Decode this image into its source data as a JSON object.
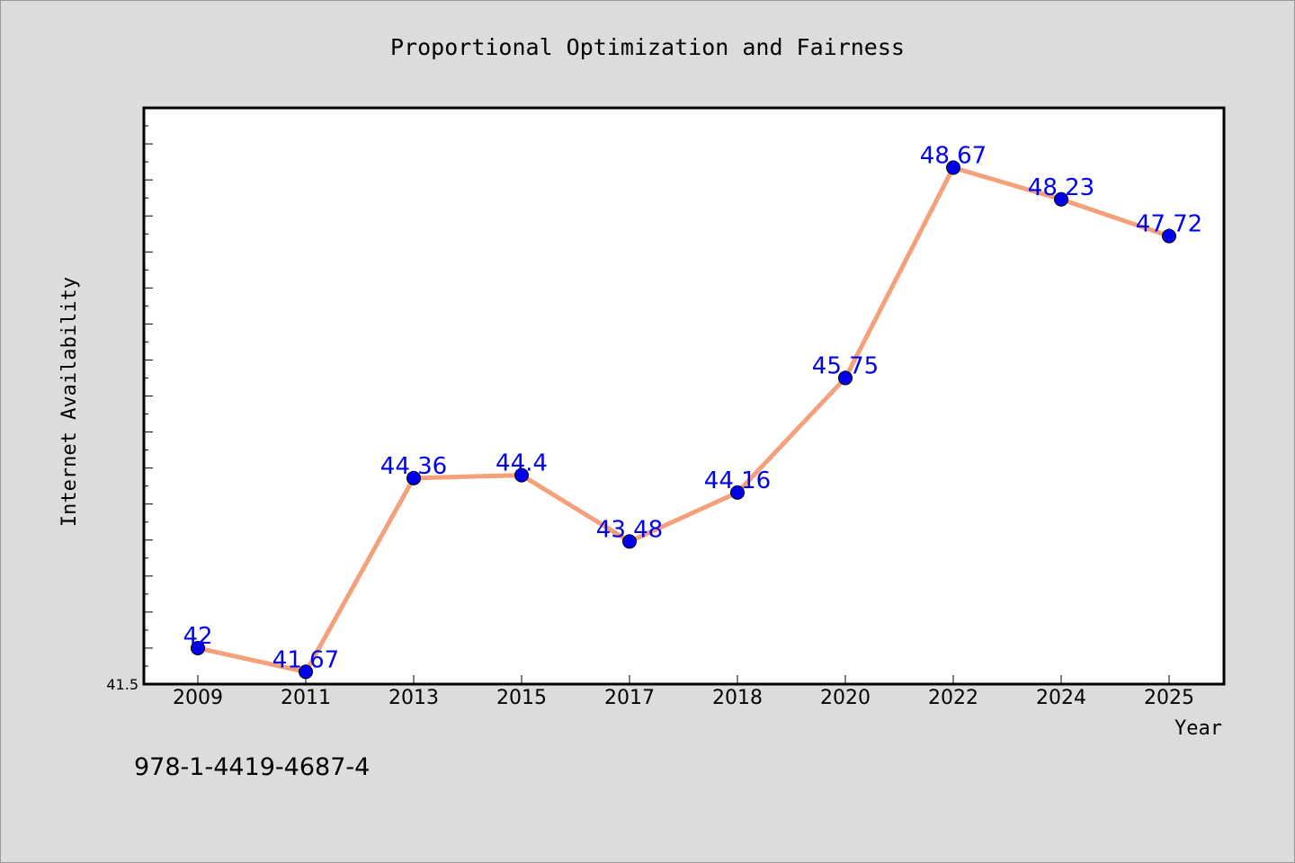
{
  "chart_data": {
    "type": "line",
    "title": "Proportional Optimization and Fairness",
    "xlabel": "Year",
    "ylabel": "Internet Availability",
    "categories": [
      "2009",
      "2011",
      "2013",
      "2015",
      "2017",
      "2018",
      "2020",
      "2022",
      "2024",
      "2025"
    ],
    "series": [
      {
        "values": [
          42,
          41.67,
          44.36,
          44.4,
          43.48,
          44.16,
          45.75,
          48.67,
          48.23,
          47.72
        ]
      }
    ],
    "data_labels": [
      "42",
      "41.67",
      "44.36",
      "44.4",
      "43.48",
      "44.16",
      "45.75",
      "48.67",
      "48.23",
      "47.72"
    ],
    "ytick_labels": [
      "41.5"
    ],
    "ylim": [
      41.5,
      49.5
    ],
    "grid": false,
    "line_color": "#f4a07a",
    "marker_color": "#0000ee",
    "label_color": "#0000ee",
    "background_color": "#dcdcdc",
    "plot_background": "#ffffff"
  },
  "footnote": "978-1-4419-4687-4"
}
